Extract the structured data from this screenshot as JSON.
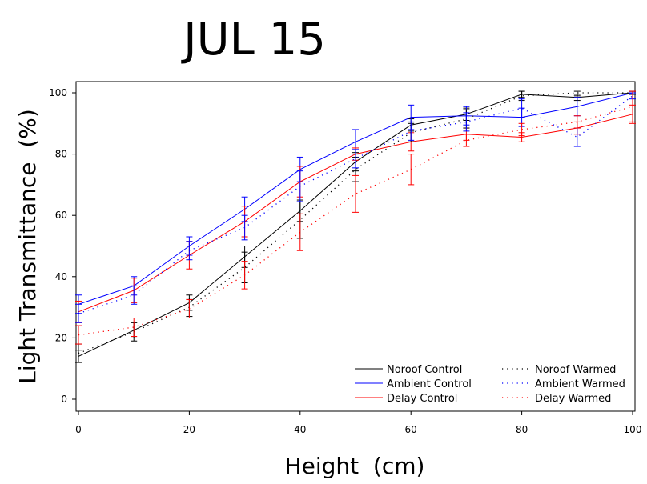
{
  "chart_data": {
    "type": "line",
    "title": "JUL 15",
    "xlabel": "Height  (cm)",
    "ylabel": "Light Transmittance  (%)",
    "xlim": [
      0,
      100
    ],
    "ylim": [
      0,
      100
    ],
    "x_ticks": [
      0,
      20,
      40,
      60,
      80,
      100
    ],
    "y_ticks": [
      0,
      20,
      40,
      60,
      80,
      100
    ],
    "grid": false,
    "legend_position": "bottom-right",
    "x": [
      0,
      10,
      20,
      30,
      40,
      50,
      60,
      70,
      80,
      90,
      100
    ],
    "series": [
      {
        "name": "Noroof Control",
        "style": "solid",
        "color": "#000000",
        "values": [
          14,
          22.5,
          31.5,
          46.5,
          61.5,
          77.5,
          89.5,
          93,
          99.5,
          98.5,
          100
        ],
        "errors": [
          2,
          2.5,
          2.5,
          3.5,
          3.5,
          3,
          2,
          2,
          1,
          1,
          0.5
        ]
      },
      {
        "name": "Ambient Control",
        "style": "solid",
        "color": "#0000ff",
        "values": [
          31,
          37,
          50,
          62,
          75,
          84,
          92,
          92.5,
          92,
          95.5,
          100
        ],
        "errors": [
          3,
          3,
          3,
          4,
          4,
          4,
          4,
          3,
          3,
          3,
          0.5
        ]
      },
      {
        "name": "Delay Control",
        "style": "solid",
        "color": "#ff0000",
        "values": [
          28.5,
          35.5,
          47,
          58,
          71,
          80,
          84,
          86.5,
          85.5,
          88.5,
          93
        ],
        "errors": [
          3.5,
          4,
          4.5,
          5,
          5,
          2,
          3,
          2,
          1.5,
          2,
          3
        ]
      },
      {
        "name": "Noroof Warmed",
        "style": "dotted",
        "color": "#000000",
        "values": [
          15,
          22,
          30,
          43,
          58.5,
          75,
          87,
          91.5,
          99,
          100,
          100
        ],
        "errors": [
          3,
          3,
          3,
          5,
          6,
          4,
          3,
          3,
          1.5,
          1,
          0.5
        ]
      },
      {
        "name": "Ambient Warmed",
        "style": "dotted",
        "color": "#0000ff",
        "values": [
          28,
          34,
          48.5,
          56,
          69.5,
          78.5,
          87.5,
          90.5,
          95,
          85.5,
          99
        ],
        "errors": [
          3,
          3,
          3,
          4,
          5,
          3,
          3,
          3,
          3,
          3,
          1
        ]
      },
      {
        "name": "Delay Warmed",
        "style": "dotted",
        "color": "#ff0000",
        "values": [
          21,
          23.5,
          29.5,
          40.5,
          54.5,
          67,
          75,
          84.5,
          88,
          90.5,
          95.5
        ],
        "errors": [
          3,
          3,
          3,
          4.5,
          6,
          6,
          5,
          2,
          2,
          2,
          5
        ]
      }
    ]
  }
}
